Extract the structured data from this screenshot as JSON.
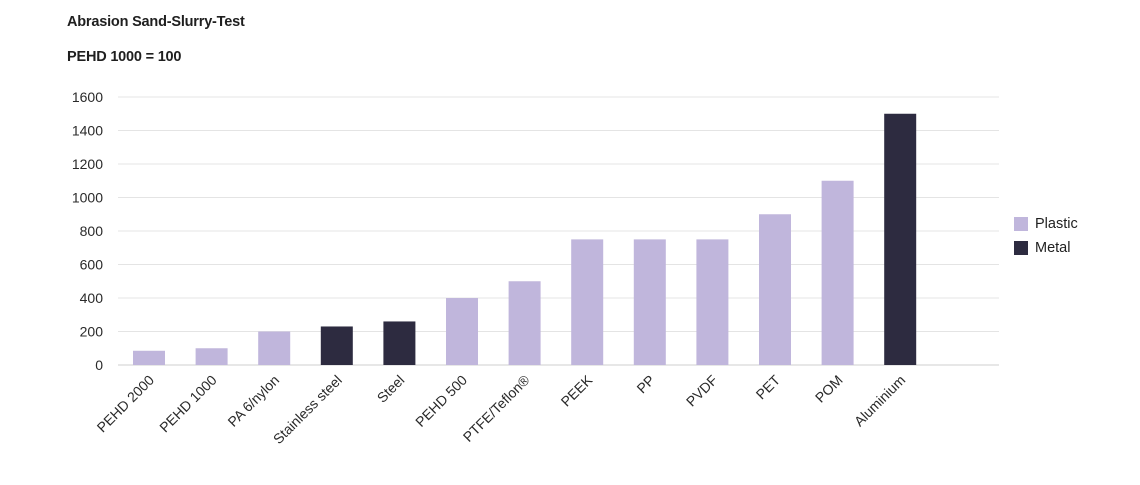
{
  "chart_data": {
    "type": "bar",
    "title": "Abrasion Sand-Slurry-Test",
    "subtitle": "PEHD 1000 = 100",
    "categories": [
      "PEHD 2000",
      "PEHD 1000",
      "PA 6/nylon",
      "Stainless steel",
      "Steel",
      "PEHD 500",
      "PTFE/Teflon®",
      "PEEK",
      "PP",
      "PVDF",
      "PET",
      "POM",
      "Aluminium"
    ],
    "values": [
      85,
      100,
      200,
      230,
      260,
      400,
      500,
      750,
      750,
      750,
      900,
      1100,
      1500
    ],
    "groups": [
      "Plastic",
      "Plastic",
      "Plastic",
      "Metal",
      "Metal",
      "Plastic",
      "Plastic",
      "Plastic",
      "Plastic",
      "Plastic",
      "Plastic",
      "Plastic",
      "Metal"
    ],
    "legend": [
      {
        "name": "Plastic",
        "color": "#c0b6dc"
      },
      {
        "name": "Metal",
        "color": "#2d2b40"
      }
    ],
    "yticks": [
      0,
      200,
      400,
      600,
      800,
      1000,
      1200,
      1400,
      1600
    ],
    "ylim": [
      0,
      1600
    ],
    "grid": true,
    "legend_position": "right"
  }
}
